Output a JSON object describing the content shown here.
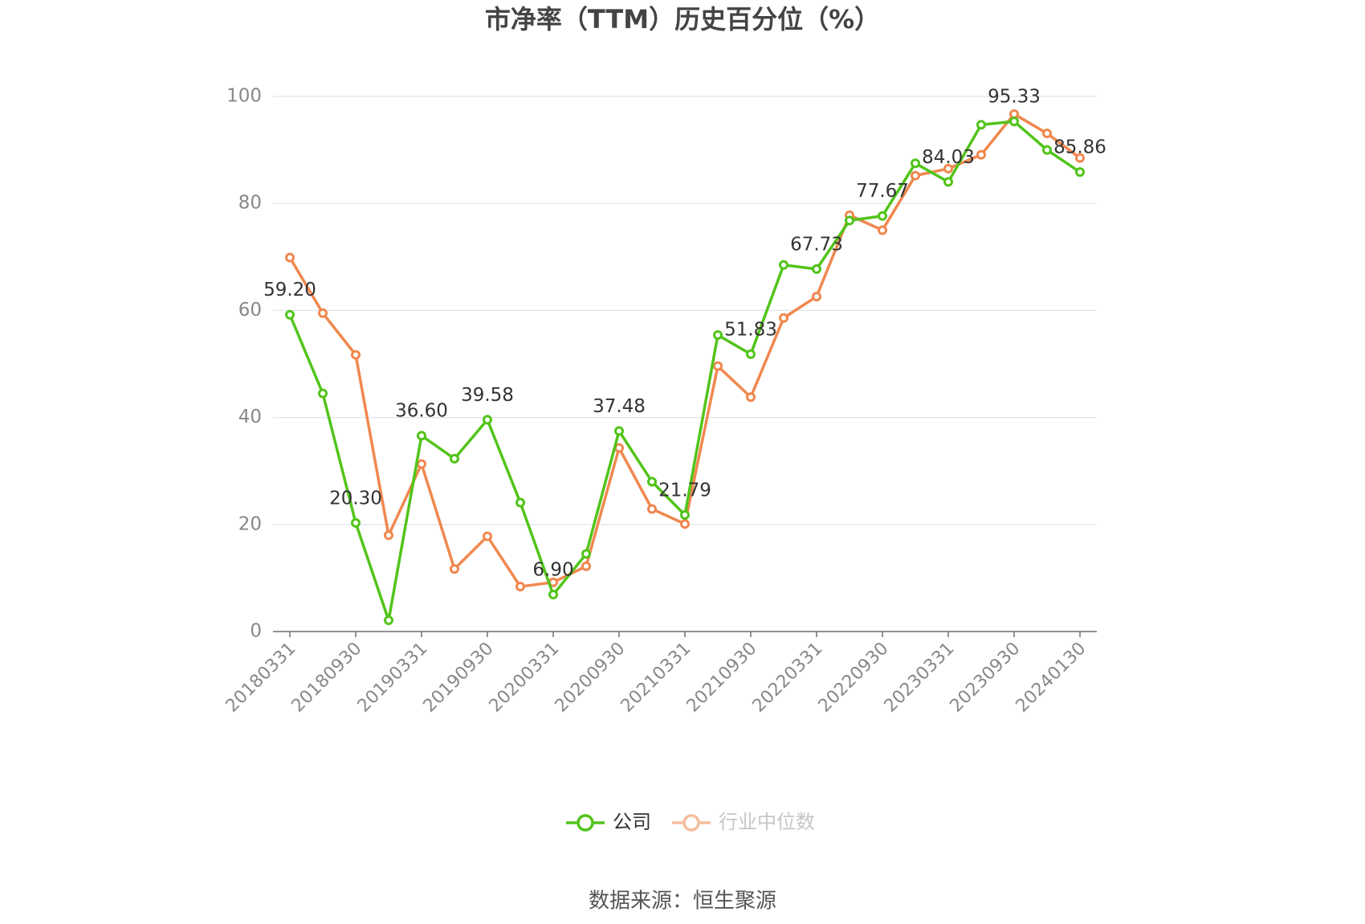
{
  "chart_data": {
    "type": "line",
    "title": "市净率（TTM）历史百分位（%）",
    "source": "数据来源：恒生聚源",
    "categories": [
      "20180331",
      null,
      "20180930",
      null,
      "20190331",
      null,
      "20190930",
      null,
      "20200331",
      null,
      "20200930",
      null,
      "20210331",
      null,
      "20210930",
      null,
      "20220331",
      null,
      "20220930",
      null,
      "20230331",
      null,
      "20230930",
      null,
      "20240130"
    ],
    "series": [
      {
        "name": "公司",
        "color": "#52c41a",
        "values": [
          59.2,
          44.5,
          20.3,
          2.1,
          36.6,
          32.3,
          39.58,
          24.1,
          6.9,
          14.5,
          37.48,
          28.0,
          21.79,
          55.4,
          51.83,
          68.5,
          67.73,
          76.8,
          77.67,
          87.5,
          84.03,
          94.7,
          95.33,
          90.0,
          85.86
        ],
        "value_labels": [
          "59.20",
          null,
          "20.30",
          null,
          "36.60",
          null,
          "39.58",
          null,
          "6.90",
          null,
          "37.48",
          null,
          "21.79",
          null,
          "51.83",
          null,
          "67.73",
          null,
          "77.67",
          null,
          "84.03",
          null,
          "95.33",
          null,
          "85.86"
        ]
      },
      {
        "name": "行业中位数",
        "color": "#f0884f",
        "values": [
          69.9,
          59.5,
          51.7,
          18.0,
          31.3,
          11.7,
          17.8,
          8.4,
          9.2,
          12.2,
          34.3,
          22.9,
          20.1,
          49.6,
          43.8,
          58.6,
          62.6,
          77.8,
          75.0,
          85.2,
          86.5,
          89.1,
          96.7,
          93.1,
          88.5
        ]
      }
    ],
    "ylim": [
      0,
      100
    ],
    "yticks": [
      0,
      20,
      40,
      60,
      80,
      100
    ],
    "grid": true,
    "legend": "bottom"
  }
}
